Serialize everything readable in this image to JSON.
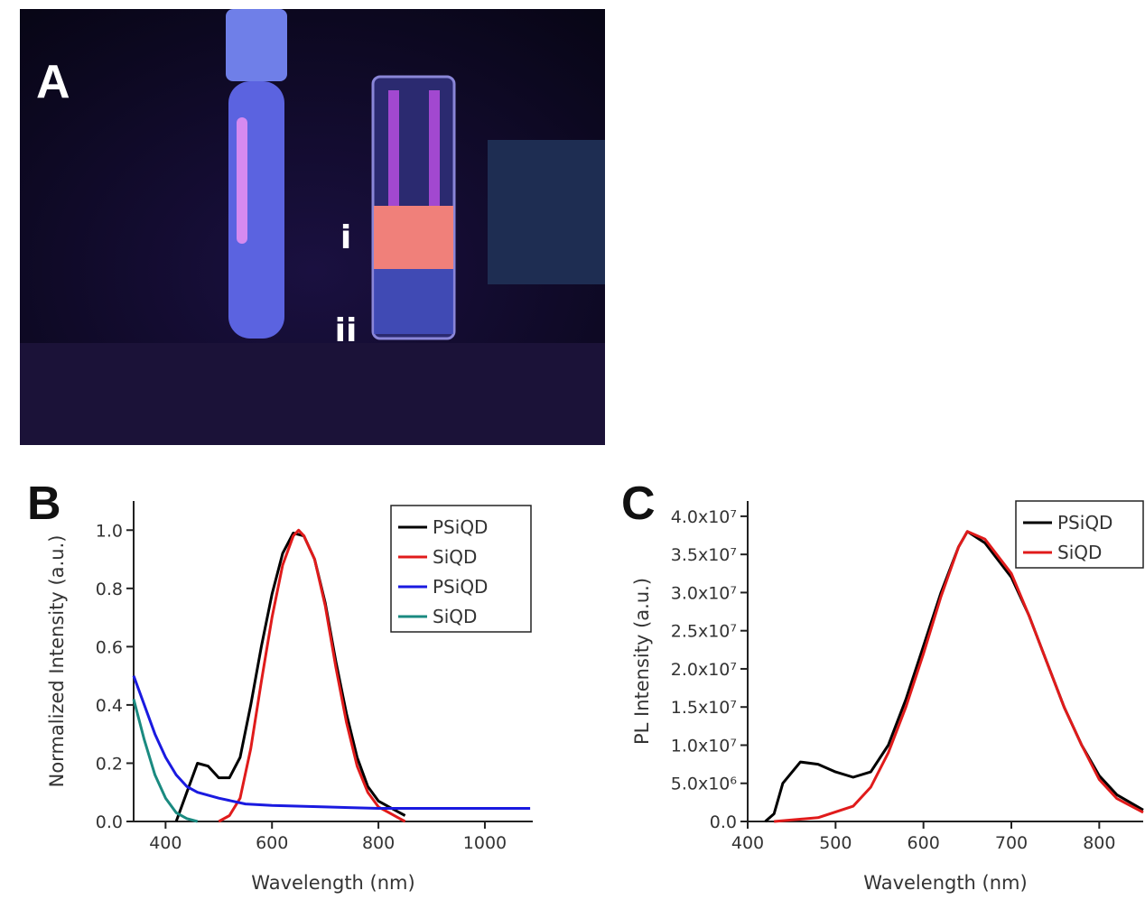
{
  "panel_a": {
    "label": "A",
    "markers": [
      "i",
      "ii"
    ]
  },
  "chart_data": [
    {
      "type": "line",
      "label": "B",
      "x_label": "Wavelength (nm)",
      "y_label": "Normalized Intensity (a.u.)",
      "xlim": [
        340,
        1090
      ],
      "ylim": [
        0,
        1.1
      ],
      "xticks": [
        400,
        600,
        800,
        1000
      ],
      "yticks": [
        {
          "value": 0,
          "label": "0.0"
        },
        0.2,
        0.4,
        0.6,
        0.8,
        {
          "value": 1,
          "label": "1.0"
        }
      ],
      "series": [
        {
          "name": "PSiQD",
          "color": "#000000",
          "x": [
            420,
            440,
            460,
            480,
            500,
            520,
            540,
            560,
            580,
            600,
            620,
            640,
            660,
            680,
            700,
            720,
            740,
            760,
            780,
            800,
            820,
            840,
            850
          ],
          "values": [
            0,
            0.1,
            0.2,
            0.19,
            0.15,
            0.15,
            0.22,
            0.4,
            0.6,
            0.78,
            0.92,
            0.99,
            0.98,
            0.9,
            0.75,
            0.55,
            0.37,
            0.22,
            0.12,
            0.07,
            0.05,
            0.03,
            0.02
          ]
        },
        {
          "name": "SiQD",
          "color": "#e01b1b",
          "x": [
            500,
            520,
            540,
            560,
            580,
            600,
            620,
            640,
            650,
            660,
            680,
            700,
            720,
            740,
            760,
            780,
            800,
            820,
            840,
            850
          ],
          "values": [
            0,
            0.02,
            0.08,
            0.25,
            0.48,
            0.7,
            0.88,
            0.98,
            1.0,
            0.98,
            0.9,
            0.74,
            0.53,
            0.34,
            0.19,
            0.1,
            0.05,
            0.03,
            0.01,
            0
          ]
        },
        {
          "name": "PSiQD",
          "color": "#1a1ae0",
          "x": [
            340,
            360,
            380,
            400,
            420,
            440,
            460,
            500,
            550,
            600,
            700,
            800,
            900,
            1000,
            1085
          ],
          "values": [
            0.5,
            0.4,
            0.3,
            0.22,
            0.16,
            0.12,
            0.1,
            0.08,
            0.06,
            0.055,
            0.05,
            0.045,
            0.045,
            0.045,
            0.045
          ]
        },
        {
          "name": "SiQD",
          "color": "#1a8a80",
          "x": [
            340,
            360,
            380,
            400,
            420,
            440,
            460
          ],
          "values": [
            0.42,
            0.28,
            0.16,
            0.08,
            0.03,
            0.01,
            0
          ]
        }
      ]
    },
    {
      "type": "line",
      "label": "C",
      "x_label": "Wavelength (nm)",
      "y_label": "PL Intensity (a.u.)",
      "xlim": [
        400,
        850
      ],
      "ylim": [
        0,
        42000000
      ],
      "xticks": [
        400,
        500,
        600,
        700,
        800
      ],
      "yticks": [
        {
          "value": 0,
          "label": "0.0"
        },
        {
          "value": 5000000,
          "label": "5.0x10⁶"
        },
        {
          "value": 10000000,
          "label": "1.0x10⁷"
        },
        {
          "value": 15000000,
          "label": "1.5x10⁷"
        },
        {
          "value": 20000000,
          "label": "2.0x10⁷"
        },
        {
          "value": 25000000,
          "label": "2.5x10⁷"
        },
        {
          "value": 30000000,
          "label": "3.0x10⁷"
        },
        {
          "value": 35000000,
          "label": "3.5x10⁷"
        },
        {
          "value": 40000000,
          "label": "4.0x10⁷"
        }
      ],
      "series": [
        {
          "name": "PSiQD",
          "color": "#000000",
          "x": [
            420,
            430,
            440,
            460,
            480,
            500,
            520,
            540,
            560,
            580,
            600,
            620,
            640,
            650,
            670,
            700,
            720,
            740,
            760,
            780,
            800,
            820,
            850
          ],
          "values": [
            0,
            1000000,
            5000000,
            7800000,
            7500000,
            6500000,
            5800000,
            6500000,
            10000000,
            16000000,
            23000000,
            30000000,
            36000000,
            38000000,
            36500000,
            32000000,
            27000000,
            21000000,
            15000000,
            10000000,
            6000000,
            3500000,
            1500000
          ]
        },
        {
          "name": "SiQD",
          "color": "#e01b1b",
          "x": [
            430,
            480,
            520,
            540,
            560,
            580,
            600,
            620,
            640,
            650,
            670,
            700,
            720,
            740,
            760,
            780,
            800,
            820,
            850
          ],
          "values": [
            0,
            500000,
            2000000,
            4500000,
            9000000,
            15000000,
            22000000,
            29500000,
            36000000,
            38000000,
            37000000,
            32500000,
            27000000,
            21000000,
            15000000,
            10000000,
            5500000,
            3000000,
            1200000
          ]
        }
      ]
    }
  ]
}
